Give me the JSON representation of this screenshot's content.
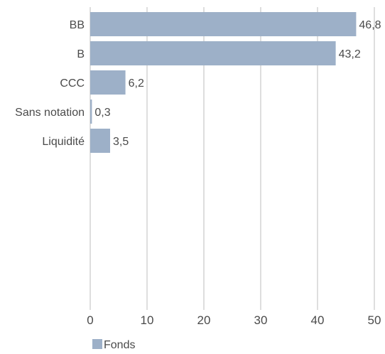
{
  "chart_data": {
    "type": "bar",
    "orientation": "horizontal",
    "categories": [
      "BB",
      "B",
      "CCC",
      "Sans notation",
      "Liquidité"
    ],
    "series": [
      {
        "name": "Fonds",
        "values": [
          46.8,
          43.2,
          6.2,
          0.3,
          3.5
        ],
        "labels": [
          "46,8",
          "43,2",
          "6,2",
          "0,3",
          "3,5"
        ]
      }
    ],
    "xlim": [
      0,
      50
    ],
    "xticks": [
      0,
      10,
      20,
      30,
      40,
      50
    ],
    "xtick_labels": [
      "0",
      "10",
      "20",
      "30",
      "40",
      "50"
    ],
    "grid": "vertical",
    "legend": "bottom-left",
    "colors": {
      "bar": "#9db0c8",
      "grid": "#bdbdbd",
      "text": "#4a4a4a"
    }
  }
}
